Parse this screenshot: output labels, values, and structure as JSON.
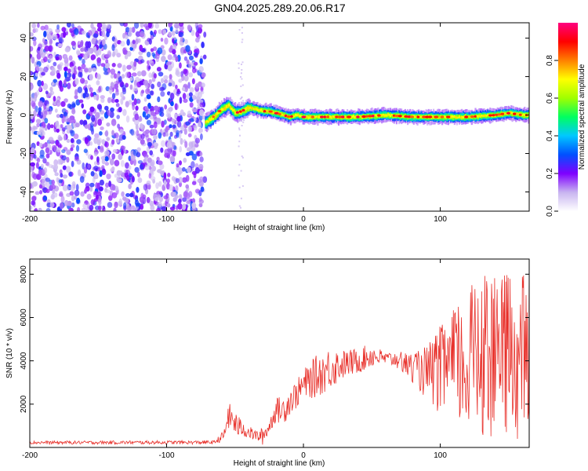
{
  "title": "GN04.2025.289.20.06.R17",
  "chart_data": [
    {
      "type": "heatmap",
      "panel": "spectrogram",
      "xlabel": "Height of straight line (km)",
      "ylabel": "Frequency (Hz)",
      "xlim": [
        -200,
        165
      ],
      "ylim": [
        -50,
        48
      ],
      "xticks": [
        -200,
        -100,
        0,
        100
      ],
      "yticks": [
        -40,
        -20,
        0,
        20,
        40
      ],
      "noise_region_x": [
        -200,
        -72
      ],
      "ridge": {
        "x": [
          -72,
          -66,
          -60,
          -55,
          -50,
          -45,
          -40,
          -35,
          -30,
          -25,
          -20,
          -15,
          -10,
          -5,
          0,
          20,
          40,
          60,
          80,
          100,
          120,
          140,
          150,
          160,
          165
        ],
        "freq": [
          -4,
          -1,
          3,
          5,
          1,
          2,
          4,
          3,
          2,
          2,
          1,
          0,
          -1,
          0,
          -1,
          -1,
          -1,
          0,
          -1,
          -1,
          -1,
          0,
          1,
          0,
          0
        ]
      },
      "colorbar": {
        "label": "Normalized spectral amplitude",
        "range": [
          0,
          1
        ],
        "ticks": [
          "0.0",
          "0.2",
          "0.4",
          "0.6",
          "0.8"
        ],
        "colors": [
          "#ffffff",
          "#c8b4f0",
          "#7f00ff",
          "#0050ff",
          "#00c8ff",
          "#00ff60",
          "#a0ff00",
          "#ffff00",
          "#ff8000",
          "#ff0000",
          "#ff0080"
        ]
      }
    },
    {
      "type": "line",
      "panel": "snr",
      "xlabel": "Height of straight line (km)",
      "ylabel": "SNR (10 * v/v)",
      "xlim": [
        -200,
        165
      ],
      "ylim": [
        0,
        8700
      ],
      "xticks": [
        -200,
        -100,
        0,
        100
      ],
      "yticks": [
        2000,
        4000,
        6000,
        8000
      ],
      "color": "#e8302a",
      "envelope": {
        "x": [
          -200,
          -65,
          -58,
          -55,
          -52,
          -48,
          -45,
          -40,
          -35,
          -30,
          -25,
          -20,
          -15,
          -10,
          -5,
          0,
          10,
          20,
          30,
          40,
          50,
          60,
          70,
          80,
          90,
          100,
          110,
          120,
          130,
          140,
          150,
          160,
          165
        ],
        "min": [
          150,
          150,
          300,
          800,
          700,
          400,
          500,
          400,
          300,
          100,
          600,
          1200,
          1000,
          1500,
          1800,
          2200,
          2300,
          2700,
          3200,
          3400,
          3700,
          3800,
          3600,
          3000,
          2200,
          1500,
          1100,
          700,
          600,
          300,
          500,
          200,
          300
        ],
        "max": [
          300,
          320,
          800,
          2100,
          1900,
          1500,
          1300,
          1000,
          800,
          900,
          1300,
          2300,
          2400,
          2800,
          3100,
          3600,
          4300,
          4700,
          4500,
          4600,
          4800,
          4400,
          4500,
          4300,
          4700,
          5600,
          6400,
          7000,
          8700,
          7800,
          8200,
          8100,
          8000
        ]
      }
    }
  ]
}
